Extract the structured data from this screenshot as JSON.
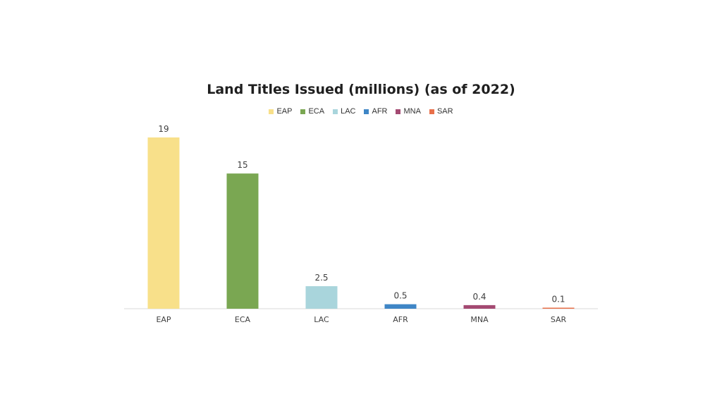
{
  "chart_data": {
    "type": "bar",
    "title": "Land Titles Issued (millions) (as of 2022)",
    "categories": [
      "EAP",
      "ECA",
      "LAC",
      "AFR",
      "MNA",
      "SAR"
    ],
    "values": [
      19,
      15,
      2.5,
      0.5,
      0.4,
      0.1
    ],
    "data_labels": [
      "19",
      "15",
      "2.5",
      "0.5",
      "0.4",
      "0.1"
    ],
    "colors": [
      "#f8e08a",
      "#7aa752",
      "#a9d5dc",
      "#3f86c6",
      "#a44a72",
      "#e8704a"
    ],
    "legend": {
      "position": "top",
      "entries": [
        "EAP",
        "ECA",
        "LAC",
        "AFR",
        "MNA",
        "SAR"
      ]
    },
    "ylim": [
      0,
      19
    ],
    "grid": false,
    "xlabel": "",
    "ylabel": ""
  }
}
